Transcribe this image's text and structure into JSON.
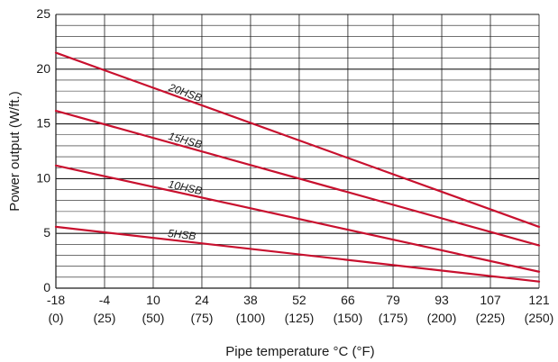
{
  "chart_data": {
    "type": "line",
    "title": "",
    "xlabel": "Pipe temperature °C (°F)",
    "ylabel": "Power output (W/ft.)",
    "x": [
      -18,
      121
    ],
    "xlim": [
      -18,
      121
    ],
    "ylim": [
      0,
      25
    ],
    "xticks": [
      {
        "value": -18,
        "label": "-18",
        "sublabel": "(0)"
      },
      {
        "value": -4,
        "label": "-4",
        "sublabel": "(25)"
      },
      {
        "value": 10,
        "label": "10",
        "sublabel": "(50)"
      },
      {
        "value": 24,
        "label": "24",
        "sublabel": "(75)"
      },
      {
        "value": 38,
        "label": "38",
        "sublabel": "(100)"
      },
      {
        "value": 52,
        "label": "52",
        "sublabel": "(125)"
      },
      {
        "value": 66,
        "label": "66",
        "sublabel": "(150)"
      },
      {
        "value": 79,
        "label": "79",
        "sublabel": "(175)"
      },
      {
        "value": 93,
        "label": "93",
        "sublabel": "(200)"
      },
      {
        "value": 107,
        "label": "107",
        "sublabel": "(225)"
      },
      {
        "value": 121,
        "label": "121",
        "sublabel": "(250)"
      }
    ],
    "yticks": [
      {
        "value": 0,
        "label": "0"
      },
      {
        "value": 5,
        "label": "5"
      },
      {
        "value": 10,
        "label": "10"
      },
      {
        "value": 15,
        "label": "15"
      },
      {
        "value": 20,
        "label": "20"
      },
      {
        "value": 25,
        "label": "25"
      }
    ],
    "y_minor_step": 1,
    "grid": true,
    "legend": "none",
    "series": [
      {
        "name": "20HSB",
        "values": [
          21.5,
          5.6
        ],
        "color": "#c8102e",
        "label_at_x": 14
      },
      {
        "name": "15HSB",
        "values": [
          16.2,
          3.9
        ],
        "color": "#c8102e",
        "label_at_x": 14
      },
      {
        "name": "10HSB",
        "values": [
          11.2,
          1.5
        ],
        "color": "#c8102e",
        "label_at_x": 14
      },
      {
        "name": "5HSB",
        "values": [
          5.6,
          0.6
        ],
        "color": "#c8102e",
        "label_at_x": 14
      }
    ]
  }
}
